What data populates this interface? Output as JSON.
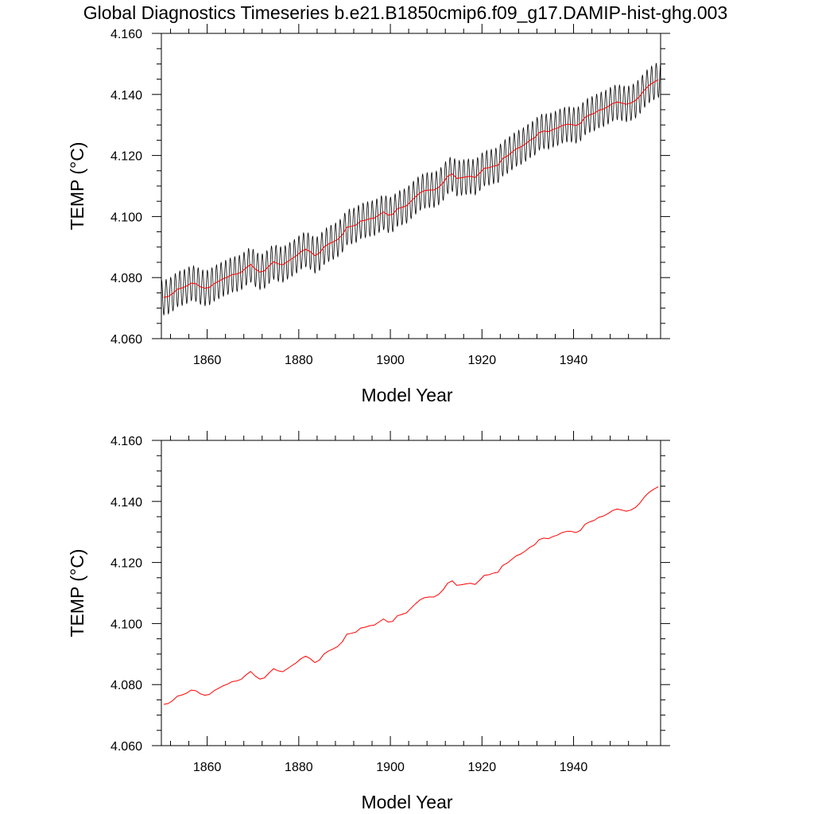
{
  "figure": {
    "title": "Global Diagnostics Timeseries b.e21.B1850cmip6.f09_g17.DAMIP-hist-ghg.003"
  },
  "chart_data": [
    {
      "type": "line",
      "title": "Global Diagnostics Timeseries b.e21.B1850cmip6.f09_g17.DAMIP-hist-ghg.003",
      "xlabel": "Model Year",
      "ylabel": "TEMP (°C)",
      "xlim": [
        1850,
        1959
      ],
      "ylim": [
        4.06,
        4.16
      ],
      "x_ticks": [
        1860,
        1880,
        1900,
        1920,
        1940
      ],
      "x_tick_labels": [
        "1860",
        "1880",
        "1900",
        "1920",
        "1940"
      ],
      "y_ticks": [
        4.06,
        4.08,
        4.1,
        4.12,
        4.14,
        4.16
      ],
      "y_tick_labels": [
        "4.060",
        "4.080",
        "4.100",
        "4.120",
        "4.140",
        "4.160"
      ],
      "grid": false,
      "series": [
        {
          "role": "monthly",
          "color": "#000000",
          "x_start": 1850.04,
          "x_step": 0.0833333,
          "seasonal_amplitude": 0.0058,
          "seasonal_phase_months": 0,
          "note_values": "monthly values = annual mean + seasonal cycle"
        },
        {
          "role": "annual-mean",
          "color": "#ff0000",
          "x": [
            1850.5,
            1851.5,
            1852.5,
            1853.5,
            1854.5,
            1855.5,
            1856.5,
            1857.5,
            1858.5,
            1859.5,
            1860.5,
            1861.5,
            1862.5,
            1863.5,
            1864.5,
            1865.5,
            1866.5,
            1867.5,
            1868.5,
            1869.5,
            1870.5,
            1871.5,
            1872.5,
            1873.5,
            1874.5,
            1875.5,
            1876.5,
            1877.5,
            1878.5,
            1879.5,
            1880.5,
            1881.5,
            1882.5,
            1883.5,
            1884.5,
            1885.5,
            1886.5,
            1887.5,
            1888.5,
            1889.5,
            1890.5,
            1891.5,
            1892.5,
            1893.5,
            1894.5,
            1895.5,
            1896.5,
            1897.5,
            1898.5,
            1899.5,
            1900.5,
            1901.5,
            1902.5,
            1903.5,
            1904.5,
            1905.5,
            1906.5,
            1907.5,
            1908.5,
            1909.5,
            1910.5,
            1911.5,
            1912.5,
            1913.5,
            1914.5,
            1915.5,
            1916.5,
            1917.5,
            1918.5,
            1919.5,
            1920.5,
            1921.5,
            1922.5,
            1923.5,
            1924.5,
            1925.5,
            1926.5,
            1927.5,
            1928.5,
            1929.5,
            1930.5,
            1931.5,
            1932.5,
            1933.5,
            1934.5,
            1935.5,
            1936.5,
            1937.5,
            1938.5,
            1939.5,
            1940.5,
            1941.5,
            1942.5,
            1943.5,
            1944.5,
            1945.5,
            1946.5,
            1947.5,
            1948.5,
            1949.5,
            1950.5,
            1951.5,
            1952.5,
            1953.5,
            1954.5,
            1955.5,
            1956.5,
            1957.5,
            1958.5
          ],
          "values": [
            4.0735,
            4.0738,
            4.0748,
            4.0762,
            4.0766,
            4.0772,
            4.0782,
            4.078,
            4.077,
            4.0765,
            4.0768,
            4.078,
            4.0788,
            4.0796,
            4.0802,
            4.081,
            4.0812,
            4.0818,
            4.0832,
            4.0843,
            4.0828,
            4.0818,
            4.0822,
            4.0838,
            4.0852,
            4.0845,
            4.0842,
            4.0852,
            4.0862,
            4.0872,
            4.0885,
            4.0893,
            4.0885,
            4.0872,
            4.088,
            4.09,
            4.091,
            4.0917,
            4.0925,
            4.094,
            4.0965,
            4.0968,
            4.0972,
            4.0985,
            4.0988,
            4.0993,
            4.0995,
            4.1005,
            4.1015,
            4.1005,
            4.1007,
            4.1025,
            4.103,
            4.1035,
            4.105,
            4.1065,
            4.1078,
            4.1085,
            4.1087,
            4.1087,
            4.1095,
            4.111,
            4.1132,
            4.114,
            4.1125,
            4.1127,
            4.113,
            4.1132,
            4.1128,
            4.1142,
            4.1158,
            4.116,
            4.1165,
            4.1168,
            4.119,
            4.1198,
            4.121,
            4.1222,
            4.1228,
            4.1238,
            4.125,
            4.1258,
            4.1275,
            4.128,
            4.1278,
            4.1285,
            4.129,
            4.1298,
            4.1302,
            4.1302,
            4.1298,
            4.1305,
            4.1325,
            4.1333,
            4.1338,
            4.1348,
            4.1352,
            4.136,
            4.137,
            4.1375,
            4.1372,
            4.1368,
            4.1372,
            4.138,
            4.1395,
            4.1415,
            4.143,
            4.144,
            4.1448
          ]
        }
      ]
    },
    {
      "type": "line",
      "title": "",
      "xlabel": "Model Year",
      "ylabel": "TEMP (°C)",
      "xlim": [
        1850,
        1959
      ],
      "ylim": [
        4.06,
        4.16
      ],
      "x_ticks": [
        1860,
        1880,
        1900,
        1920,
        1940
      ],
      "x_tick_labels": [
        "1860",
        "1880",
        "1900",
        "1920",
        "1940"
      ],
      "y_ticks": [
        4.06,
        4.08,
        4.1,
        4.12,
        4.14,
        4.16
      ],
      "y_tick_labels": [
        "4.060",
        "4.080",
        "4.100",
        "4.120",
        "4.140",
        "4.160"
      ],
      "grid": false,
      "series": [
        {
          "role": "annual-mean",
          "color": "#ff0000",
          "x": [
            1850.5,
            1851.5,
            1852.5,
            1853.5,
            1854.5,
            1855.5,
            1856.5,
            1857.5,
            1858.5,
            1859.5,
            1860.5,
            1861.5,
            1862.5,
            1863.5,
            1864.5,
            1865.5,
            1866.5,
            1867.5,
            1868.5,
            1869.5,
            1870.5,
            1871.5,
            1872.5,
            1873.5,
            1874.5,
            1875.5,
            1876.5,
            1877.5,
            1878.5,
            1879.5,
            1880.5,
            1881.5,
            1882.5,
            1883.5,
            1884.5,
            1885.5,
            1886.5,
            1887.5,
            1888.5,
            1889.5,
            1890.5,
            1891.5,
            1892.5,
            1893.5,
            1894.5,
            1895.5,
            1896.5,
            1897.5,
            1898.5,
            1899.5,
            1900.5,
            1901.5,
            1902.5,
            1903.5,
            1904.5,
            1905.5,
            1906.5,
            1907.5,
            1908.5,
            1909.5,
            1910.5,
            1911.5,
            1912.5,
            1913.5,
            1914.5,
            1915.5,
            1916.5,
            1917.5,
            1918.5,
            1919.5,
            1920.5,
            1921.5,
            1922.5,
            1923.5,
            1924.5,
            1925.5,
            1926.5,
            1927.5,
            1928.5,
            1929.5,
            1930.5,
            1931.5,
            1932.5,
            1933.5,
            1934.5,
            1935.5,
            1936.5,
            1937.5,
            1938.5,
            1939.5,
            1940.5,
            1941.5,
            1942.5,
            1943.5,
            1944.5,
            1945.5,
            1946.5,
            1947.5,
            1948.5,
            1949.5,
            1950.5,
            1951.5,
            1952.5,
            1953.5,
            1954.5,
            1955.5,
            1956.5,
            1957.5,
            1958.5
          ],
          "values": [
            4.0735,
            4.0738,
            4.0748,
            4.0762,
            4.0766,
            4.0772,
            4.0782,
            4.078,
            4.077,
            4.0765,
            4.0768,
            4.078,
            4.0788,
            4.0796,
            4.0802,
            4.081,
            4.0812,
            4.0818,
            4.0832,
            4.0843,
            4.0828,
            4.0818,
            4.0822,
            4.0838,
            4.0852,
            4.0845,
            4.0842,
            4.0852,
            4.0862,
            4.0872,
            4.0885,
            4.0893,
            4.0885,
            4.0872,
            4.088,
            4.09,
            4.091,
            4.0917,
            4.0925,
            4.094,
            4.0965,
            4.0968,
            4.0972,
            4.0985,
            4.0988,
            4.0993,
            4.0995,
            4.1005,
            4.1015,
            4.1005,
            4.1007,
            4.1025,
            4.103,
            4.1035,
            4.105,
            4.1065,
            4.1078,
            4.1085,
            4.1087,
            4.1087,
            4.1095,
            4.111,
            4.1132,
            4.114,
            4.1125,
            4.1127,
            4.113,
            4.1132,
            4.1128,
            4.1142,
            4.1158,
            4.116,
            4.1165,
            4.1168,
            4.119,
            4.1198,
            4.121,
            4.1222,
            4.1228,
            4.1238,
            4.125,
            4.1258,
            4.1275,
            4.128,
            4.1278,
            4.1285,
            4.129,
            4.1298,
            4.1302,
            4.1302,
            4.1298,
            4.1305,
            4.1325,
            4.1333,
            4.1338,
            4.1348,
            4.1352,
            4.136,
            4.137,
            4.1375,
            4.1372,
            4.1368,
            4.1372,
            4.138,
            4.1395,
            4.1415,
            4.143,
            4.144,
            4.1448
          ]
        }
      ]
    }
  ]
}
